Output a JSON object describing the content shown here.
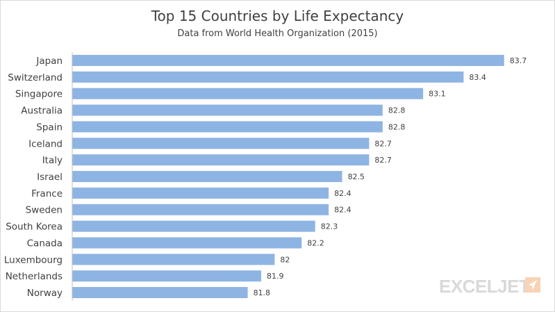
{
  "chart_data": {
    "type": "bar",
    "orientation": "horizontal",
    "title": "Top 15 Countries by Life Expectancy",
    "subtitle": "Data from World Health Organization (2015)",
    "categories": [
      "Japan",
      "Switzerland",
      "Singapore",
      "Australia",
      "Spain",
      "Iceland",
      "Italy",
      "Israel",
      "France",
      "Sweden",
      "South Korea",
      "Canada",
      "Luxembourg",
      "Netherlands",
      "Norway"
    ],
    "values": [
      83.7,
      83.4,
      83.1,
      82.8,
      82.8,
      82.7,
      82.7,
      82.5,
      82.4,
      82.4,
      82.3,
      82.2,
      82,
      81.9,
      81.8
    ],
    "value_labels": [
      "83.7",
      "83.4",
      "83.1",
      "82.8",
      "82.8",
      "82.7",
      "82.7",
      "82.5",
      "82.4",
      "82.4",
      "82.3",
      "82.2",
      "82",
      "81.9",
      "81.8"
    ],
    "xlim": [
      80.5,
      84
    ],
    "grid": false,
    "legend": "none",
    "bar_color": "#8EB4E3"
  },
  "watermark": {
    "text": "EXCELJET",
    "color": "#d9d9d9",
    "accent": "#f8d3b5"
  }
}
